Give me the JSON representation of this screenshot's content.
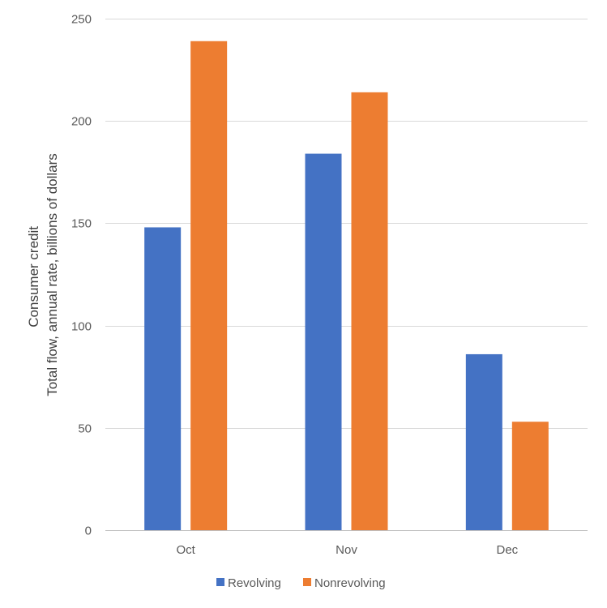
{
  "chart_data": {
    "type": "bar",
    "categories": [
      "Oct",
      "Nov",
      "Dec"
    ],
    "series": [
      {
        "name": "Revolving",
        "color": "#4472C4",
        "values": [
          148,
          184,
          86
        ]
      },
      {
        "name": "Nonrevolving",
        "color": "#ED7D31",
        "values": [
          239,
          214,
          53
        ]
      }
    ],
    "ylabel_lines": [
      "Consumer credit",
      "Total flow, annual rate, billions of dollars"
    ],
    "ylim": [
      0,
      250
    ],
    "yticks": [
      0,
      50,
      100,
      150,
      200,
      250
    ],
    "grid": true,
    "legend": "bottom-center"
  }
}
